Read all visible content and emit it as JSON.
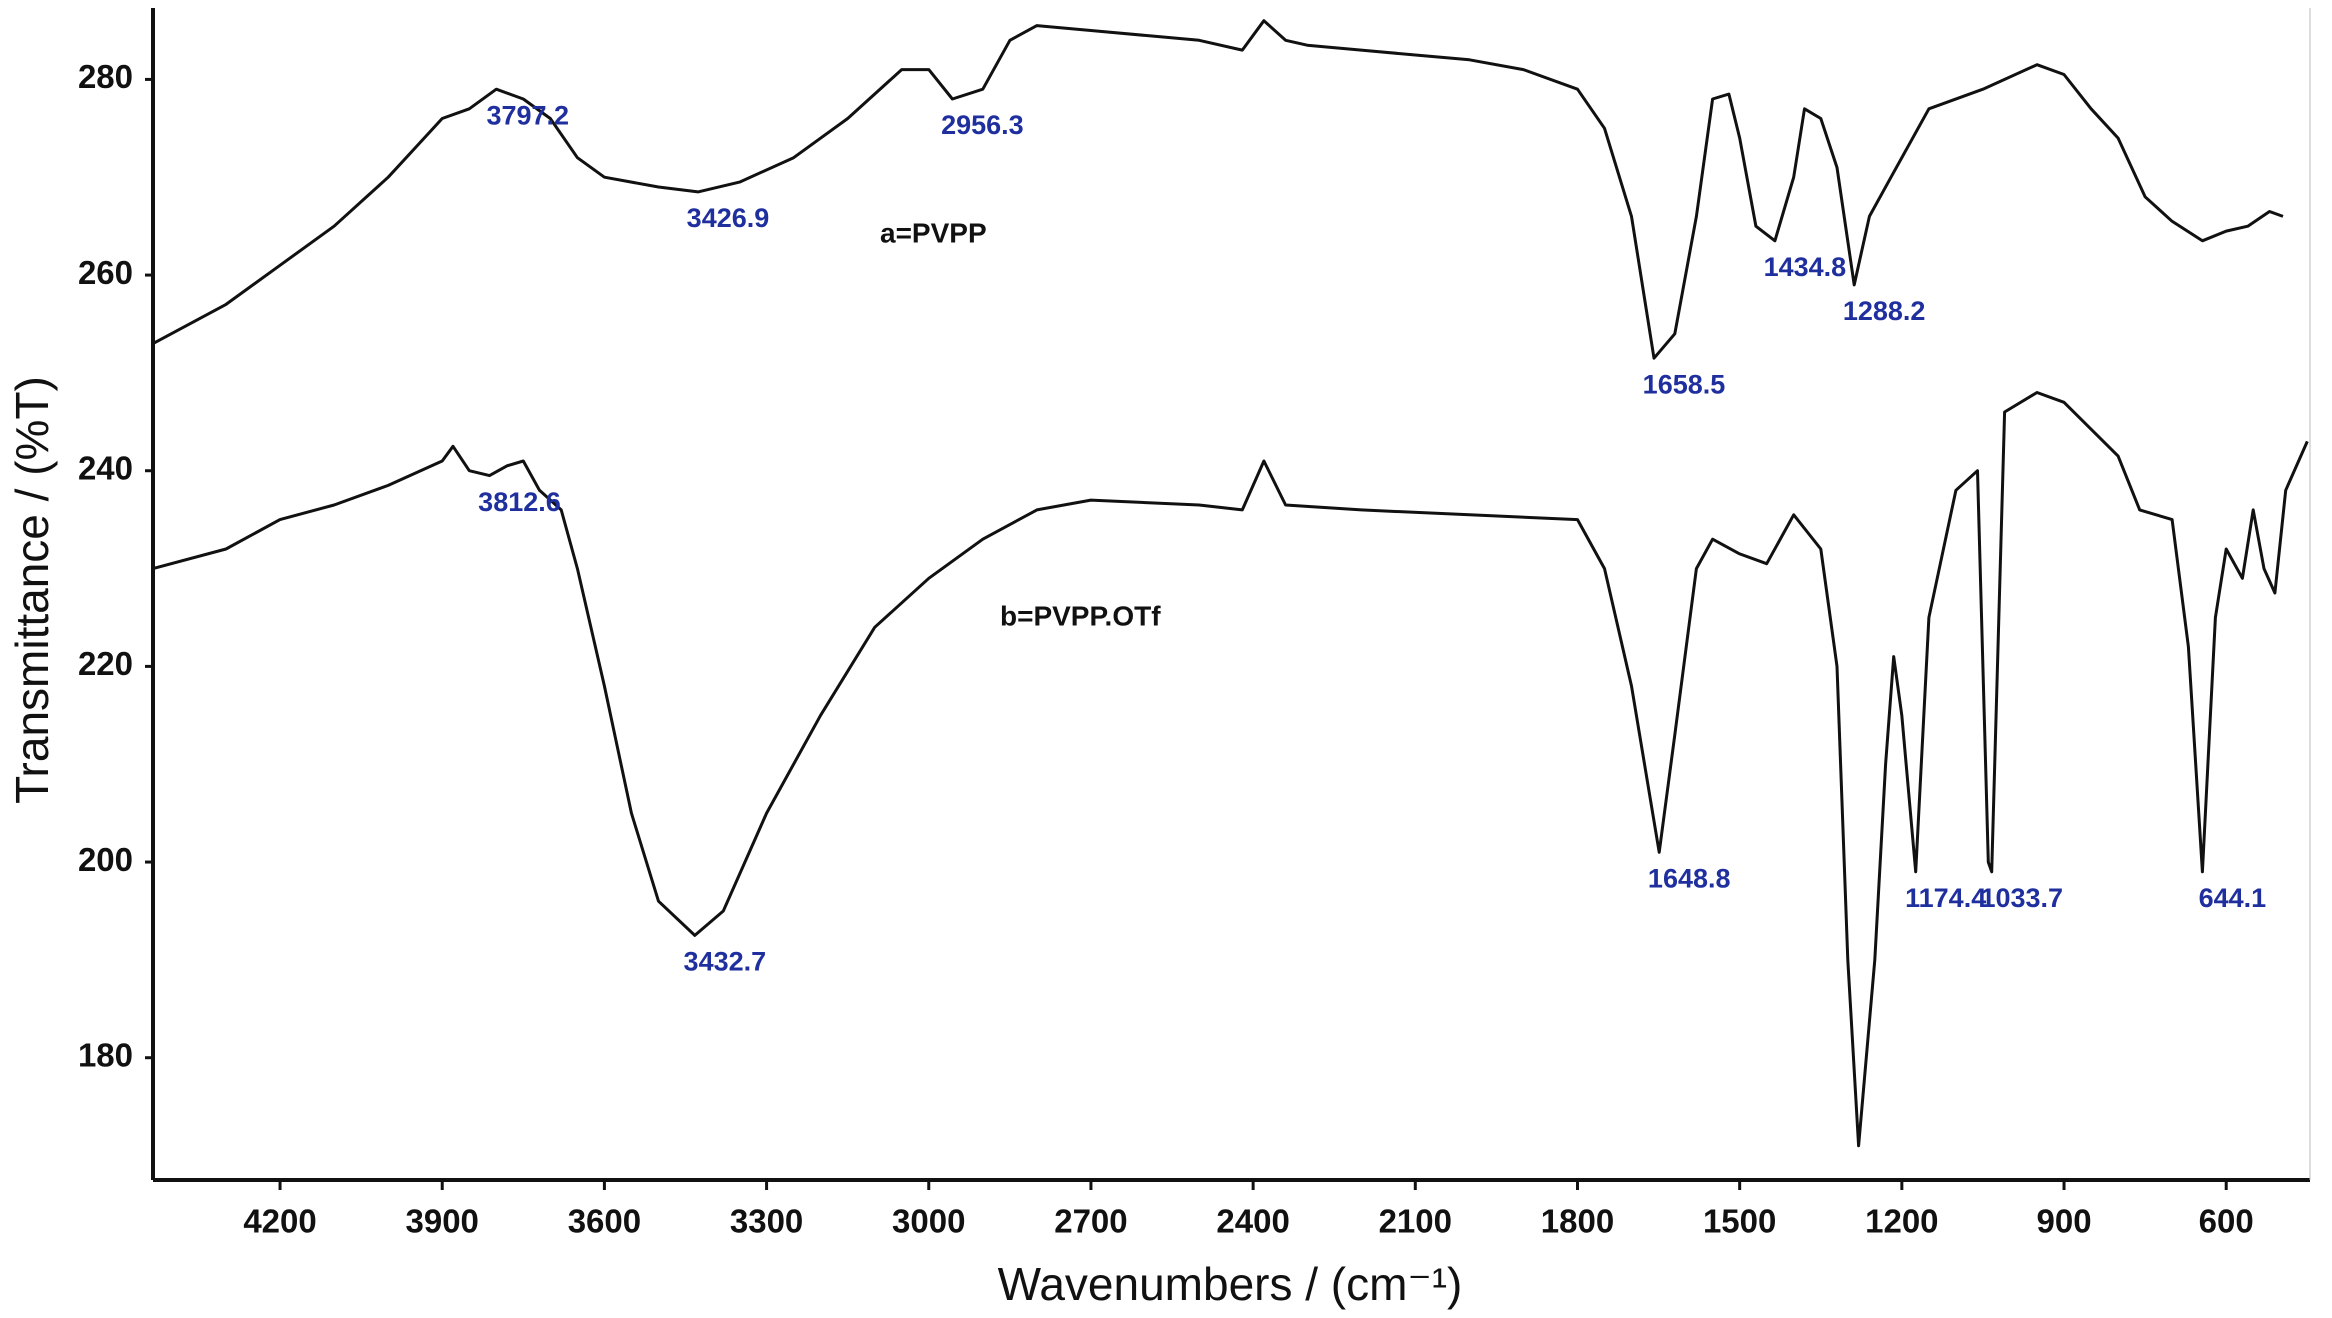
{
  "chart_data": {
    "type": "line",
    "xlabel": "Wavenumbers / (cm⁻¹)",
    "ylabel": "Transmittance / (%T)",
    "xlim": [
      4435,
      445
    ],
    "ylim": [
      167.5,
      287.3
    ],
    "xticks": [
      4200,
      3900,
      3600,
      3300,
      3000,
      2700,
      2400,
      2100,
      1800,
      1500,
      1200,
      900,
      600
    ],
    "yticks": [
      180,
      200,
      220,
      240,
      260,
      280
    ],
    "series": [
      {
        "name": "a=PVPP",
        "color": "#111111",
        "x": [
          4435,
          4300,
          4200,
          4100,
          4000,
          3950,
          3900,
          3850,
          3800,
          3750,
          3700,
          3650,
          3600,
          3500,
          3426.9,
          3350,
          3250,
          3150,
          3050,
          3000,
          2956.3,
          2900,
          2850,
          2800,
          2700,
          2600,
          2500,
          2420,
          2380,
          2340,
          2300,
          2200,
          2100,
          2000,
          1900,
          1800,
          1750,
          1700,
          1658.5,
          1620,
          1580,
          1550,
          1520,
          1500,
          1470,
          1434.8,
          1400,
          1380,
          1350,
          1320,
          1288.2,
          1260,
          1220,
          1150,
          1050,
          950,
          900,
          850,
          800,
          750,
          700,
          644,
          600,
          560,
          520,
          495
        ],
        "values": [
          253,
          257,
          261,
          265,
          270,
          273,
          276,
          277,
          279,
          278,
          276,
          272,
          270,
          269,
          268.5,
          269.5,
          272,
          276,
          281,
          281,
          278,
          279,
          284,
          285.5,
          285,
          284.5,
          284,
          283,
          286,
          284,
          283.5,
          283,
          282.5,
          282,
          281,
          279,
          275,
          266,
          251.5,
          254,
          266,
          278,
          278.5,
          274,
          265,
          263.5,
          270,
          277,
          276,
          271,
          259,
          266,
          270,
          277,
          279,
          281.5,
          280.5,
          277,
          274,
          268,
          265.5,
          263.5,
          264.5,
          265,
          266.5,
          266
        ]
      },
      {
        "name": "b=PVPP.OTf",
        "color": "#111111",
        "x": [
          4435,
          4300,
          4200,
          4100,
          4000,
          3900,
          3880,
          3850,
          3812.6,
          3780,
          3750,
          3720,
          3680,
          3650,
          3600,
          3550,
          3500,
          3432.7,
          3380,
          3300,
          3200,
          3100,
          3000,
          2900,
          2800,
          2700,
          2500,
          2420,
          2380,
          2340,
          2200,
          2000,
          1800,
          1750,
          1700,
          1648.8,
          1620,
          1580,
          1550,
          1500,
          1450,
          1400,
          1350,
          1320,
          1300,
          1280,
          1250,
          1230,
          1215,
          1200,
          1174.4,
          1150,
          1100,
          1060,
          1040,
          1033.7,
          1010,
          950,
          900,
          800,
          760,
          700,
          670,
          644.1,
          620,
          600,
          570,
          550,
          530,
          510,
          490,
          450
        ],
        "values": [
          230,
          232,
          235,
          236.5,
          238.5,
          241,
          242.5,
          240,
          239.5,
          240.5,
          241,
          238,
          236,
          230,
          218,
          205,
          196,
          192.5,
          195,
          205,
          215,
          224,
          229,
          233,
          236,
          237,
          236.5,
          236,
          241,
          236.5,
          236,
          235.5,
          235,
          230,
          218,
          201,
          213,
          230,
          233,
          231.5,
          230.5,
          235.5,
          232,
          220,
          190,
          171,
          190,
          210,
          221,
          215,
          199,
          225,
          238,
          240,
          200,
          199,
          246,
          248,
          247,
          241.5,
          236,
          235,
          222,
          199,
          225,
          232,
          229,
          236,
          230,
          227.5,
          238,
          243
        ]
      }
    ],
    "annotations": [
      {
        "text": "3797.2",
        "x": 3797.2,
        "y": 279
      },
      {
        "text": "3426.9",
        "x": 3426.9,
        "y": 268.5
      },
      {
        "text": "2956.3",
        "x": 2956.3,
        "y": 278
      },
      {
        "text": "1658.5",
        "x": 1658.5,
        "y": 251.5
      },
      {
        "text": "1434.8",
        "x": 1434.8,
        "y": 263.5
      },
      {
        "text": "1288.2",
        "x": 1288.2,
        "y": 259
      },
      {
        "text": "3812.6",
        "x": 3812.6,
        "y": 239.5
      },
      {
        "text": "3432.7",
        "x": 3432.7,
        "y": 192.5
      },
      {
        "text": "1648.8",
        "x": 1648.8,
        "y": 201
      },
      {
        "text": "1174.4",
        "x": 1174.4,
        "y": 199
      },
      {
        "text": "1033.7",
        "x": 1033.7,
        "y": 199
      },
      {
        "text": "644.1",
        "x": 644.1,
        "y": 199
      }
    ]
  }
}
